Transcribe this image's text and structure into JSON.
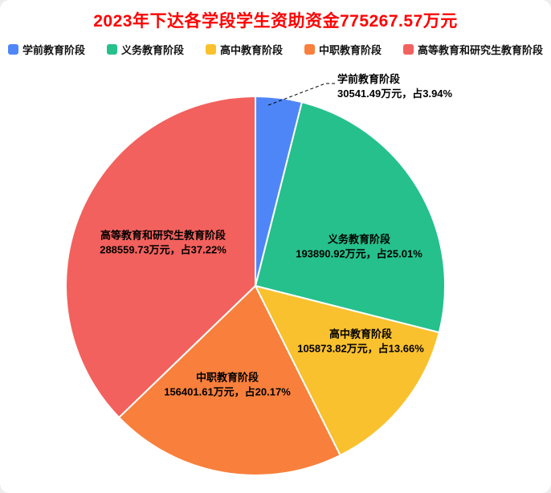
{
  "title": "2023年下达各学段学生资助资金775267.57万元",
  "title_color": "#ff0000",
  "unit": "万元",
  "total_value": 775267.57,
  "chart_data": {
    "type": "pie",
    "title": "2023年下达各学段学生资助资金775267.57万元",
    "legend_position": "top",
    "start_angle_deg": -90,
    "direction": "clockwise",
    "slices": [
      {
        "label": "学前教育阶段",
        "value": 30541.49,
        "pct": 3.94,
        "color": "#4f86f7",
        "amount_label": "30541.49万元，占3.94%"
      },
      {
        "label": "义务教育阶段",
        "value": 193890.92,
        "pct": 25.01,
        "color": "#25c08c",
        "amount_label": "193890.92万元，占25.01%"
      },
      {
        "label": "高中教育阶段",
        "value": 105873.82,
        "pct": 13.66,
        "color": "#f9c12e",
        "amount_label": "105873.82万元，占13.66%"
      },
      {
        "label": "中职教育阶段",
        "value": 156401.61,
        "pct": 20.17,
        "color": "#f8803c",
        "amount_label": "156401.61万元，占20.17%"
      },
      {
        "label": "高等教育和研究生教育阶段",
        "value": 288559.73,
        "pct": 37.22,
        "color": "#f2615d",
        "amount_label": "288559.73万元，占37.22%"
      }
    ]
  }
}
